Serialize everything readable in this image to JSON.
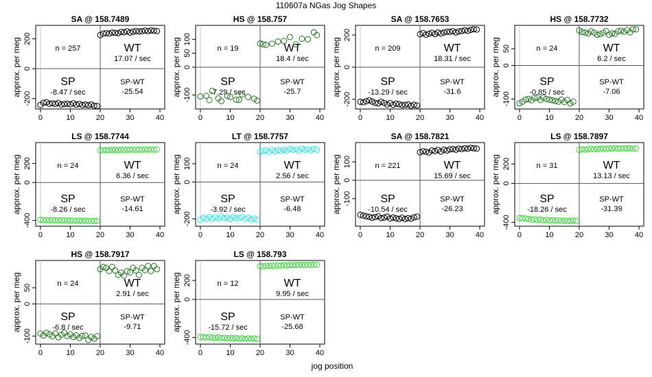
{
  "page": {
    "title": "110607a   NGas Jog Shapes",
    "xlabel": "jog position",
    "ylabel": "approx. per meg"
  },
  "colors": {
    "black": "#000000",
    "dark_green": "#1b7a1b",
    "bright_green": "#33dd33",
    "cyan": "#2ee6f0"
  },
  "chart_data": [
    {
      "type": "scatter",
      "title": "SA @ 158.7489",
      "color": "#000000",
      "ylim": [
        -270,
        290
      ],
      "yticks": [
        -200,
        0,
        200
      ],
      "xticks": [
        0,
        10,
        20,
        30,
        40
      ],
      "n_label": "n = 257",
      "wt_label": "WT",
      "wt_rate": "17.07 / sec",
      "sp_label": "SP",
      "sp_rate": "-8.47 / sec",
      "spwt_label": "SP-WT",
      "spwt_value": "-25.54",
      "sp_x": [
        0,
        1,
        2,
        3,
        4,
        5,
        6,
        7,
        8,
        9,
        10,
        11,
        12,
        13,
        14,
        15,
        16,
        17,
        18,
        19
      ],
      "sp_y": [
        -243,
        -228,
        -226,
        -235,
        -232,
        -236,
        -230,
        -240,
        -237,
        -235,
        -239,
        -232,
        -241,
        -236,
        -243,
        -240,
        -244,
        -240,
        -248,
        -250
      ],
      "wt_x": [
        20,
        21,
        22,
        23,
        24,
        25,
        26,
        27,
        28,
        29,
        30,
        31,
        32,
        33,
        34,
        35,
        36,
        37,
        38,
        39
      ],
      "wt_y": [
        225,
        235,
        238,
        235,
        242,
        240,
        238,
        246,
        244,
        250,
        242,
        248,
        252,
        249,
        251,
        255,
        252,
        256,
        254,
        252
      ]
    },
    {
      "type": "scatter",
      "title": "HS @ 158.757",
      "color": "#1b7a1b",
      "ylim": [
        -150,
        150
      ],
      "yticks": [
        -100,
        0,
        50,
        100
      ],
      "xticks": [
        0,
        10,
        20,
        30,
        40
      ],
      "n_label": "n = 19",
      "wt_label": "WT",
      "wt_rate": "18.4 / sec",
      "sp_label": "SP",
      "sp_rate": "-7.29 / sec",
      "spwt_label": "SP-WT",
      "spwt_value": "-25.7",
      "sp_x": [
        0,
        2,
        3,
        4,
        6,
        7,
        9,
        10,
        12,
        13,
        14,
        16,
        18,
        19
      ],
      "sp_y": [
        -105,
        -103,
        -118,
        -85,
        -112,
        -122,
        -103,
        -107,
        -117,
        -117,
        -98,
        -107,
        -113,
        -120
      ],
      "wt_x": [
        20,
        21,
        22,
        24,
        26,
        28,
        30,
        32,
        34,
        36,
        38,
        39
      ],
      "wt_y": [
        85,
        82,
        80,
        84,
        92,
        94,
        108,
        82,
        102,
        100,
        125,
        115
      ]
    },
    {
      "type": "scatter",
      "title": "SA @ 158.7653",
      "color": "#000000",
      "ylim": [
        -260,
        260
      ],
      "yticks": [
        -200,
        0,
        200
      ],
      "xticks": [
        0,
        10,
        20,
        30,
        40
      ],
      "n_label": "n = 209",
      "wt_label": "WT",
      "wt_rate": "18.31 / sec",
      "sp_label": "SP",
      "sp_rate": "-13.29 / sec",
      "spwt_label": "SP-WT",
      "spwt_value": "-31.6",
      "sp_x": [
        0,
        1,
        2,
        3,
        4,
        5,
        6,
        7,
        8,
        9,
        10,
        11,
        12,
        13,
        14,
        15,
        16,
        17,
        18,
        19
      ],
      "sp_y": [
        -215,
        -218,
        -212,
        -206,
        -214,
        -222,
        -225,
        -215,
        -222,
        -232,
        -224,
        -234,
        -227,
        -230,
        -236,
        -234,
        -232,
        -240,
        -234,
        -238
      ],
      "wt_x": [
        20,
        21,
        22,
        23,
        24,
        25,
        26,
        27,
        28,
        29,
        30,
        31,
        32,
        33,
        34,
        35,
        36,
        37,
        38,
        39
      ],
      "wt_y": [
        205,
        212,
        202,
        208,
        214,
        206,
        216,
        210,
        216,
        220,
        220,
        224,
        216,
        222,
        225,
        230,
        226,
        232,
        236,
        234
      ]
    },
    {
      "type": "scatter",
      "title": "HS @ 158.7732",
      "color": "#1b7a1b",
      "ylim": [
        -130,
        120
      ],
      "yticks": [
        -100,
        0,
        50
      ],
      "xticks": [
        0,
        10,
        20,
        30,
        40
      ],
      "n_label": "n = 24",
      "wt_label": "WT",
      "wt_rate": "6.2 / sec",
      "sp_label": "SP",
      "sp_rate": "-0.85 / sec",
      "spwt_label": "SP-WT",
      "spwt_value": "-7.06",
      "sp_x": [
        0,
        1,
        2,
        3,
        4,
        5,
        6,
        7,
        8,
        9,
        10,
        11,
        12,
        13,
        14,
        15,
        16,
        17,
        18
      ],
      "sp_y": [
        -113,
        -108,
        -102,
        -100,
        -104,
        -97,
        -96,
        -103,
        -96,
        -100,
        -102,
        -104,
        -106,
        -108,
        -102,
        -109,
        -103,
        -113,
        -108
      ],
      "wt_x": [
        20,
        21,
        22,
        23,
        24,
        25,
        26,
        27,
        28,
        29,
        30,
        31,
        32,
        33,
        34,
        35,
        36,
        37,
        38,
        39
      ],
      "wt_y": [
        105,
        100,
        98,
        96,
        102,
        98,
        92,
        94,
        98,
        103,
        92,
        96,
        95,
        102,
        104,
        101,
        106,
        99,
        108,
        108
      ]
    },
    {
      "type": "scatter",
      "title": "LS @ 158.7744",
      "color": "#33dd33",
      "ylim": [
        -460,
        420
      ],
      "yticks": [
        -400,
        0,
        200
      ],
      "xticks": [
        0,
        10,
        20,
        30,
        40
      ],
      "n_label": "n = 24",
      "wt_label": "WT",
      "wt_rate": "6.36 / sec",
      "sp_label": "SP",
      "sp_rate": "-8.26 / sec",
      "spwt_label": "SP-WT",
      "spwt_value": "-14.61",
      "sp_x": [
        0,
        1,
        2,
        3,
        4,
        5,
        6,
        7,
        8,
        9,
        10,
        11,
        12,
        13,
        14,
        15,
        16,
        17,
        18,
        19
      ],
      "sp_y": [
        -392,
        -396,
        -395,
        -398,
        -396,
        -399,
        -397,
        -400,
        -398,
        -402,
        -400,
        -401,
        -403,
        -400,
        -404,
        -402,
        -405,
        -404,
        -406,
        -405
      ],
      "wt_x": [
        20,
        21,
        22,
        23,
        24,
        25,
        26,
        27,
        28,
        29,
        30,
        31,
        32,
        33,
        34,
        35,
        36,
        37,
        38,
        39
      ],
      "wt_y": [
        338,
        340,
        342,
        340,
        343,
        344,
        342,
        345,
        344,
        346,
        345,
        347,
        344,
        346,
        345,
        348,
        346,
        347,
        345,
        348
      ]
    },
    {
      "type": "scatter",
      "title": "LT @ 158.7757",
      "color": "#2ee6f0",
      "ylim": [
        -240,
        215
      ],
      "yticks": [
        -200,
        0,
        100
      ],
      "xticks": [
        0,
        10,
        20,
        30,
        40
      ],
      "n_label": "n = 24",
      "wt_label": "WT",
      "wt_rate": "2.56 / sec",
      "sp_label": "SP",
      "sp_rate": "-3.92 / sec",
      "spwt_label": "SP-WT",
      "spwt_value": "-6.48",
      "sp_x": [
        0,
        1,
        2,
        3,
        4,
        5,
        6,
        7,
        8,
        9,
        10,
        11,
        12,
        13,
        14,
        15,
        16,
        17,
        18,
        19
      ],
      "sp_y": [
        -205,
        -195,
        -200,
        -190,
        -200,
        -192,
        -198,
        -188,
        -196,
        -193,
        -201,
        -189,
        -197,
        -195,
        -190,
        -200,
        -194,
        -203,
        -198,
        -205
      ],
      "wt_x": [
        20,
        21,
        22,
        23,
        24,
        25,
        26,
        27,
        28,
        29,
        30,
        31,
        32,
        33,
        34,
        35,
        36,
        37,
        38,
        39
      ],
      "wt_y": [
        165,
        170,
        172,
        165,
        175,
        168,
        174,
        170,
        176,
        172,
        180,
        175,
        178,
        170,
        182,
        176,
        178,
        172,
        180,
        176
      ]
    },
    {
      "type": "scatter",
      "title": "SA @ 158.7821",
      "color": "#000000",
      "ylim": [
        -250,
        205
      ],
      "yticks": [
        -100,
        0,
        100
      ],
      "xticks": [
        0,
        10,
        20,
        30,
        40
      ],
      "n_label": "n = 221",
      "wt_label": "WT",
      "wt_rate": "15.69 / sec",
      "sp_label": "SP",
      "sp_rate": "-10.54 / sec",
      "spwt_label": "SP-WT",
      "spwt_value": "-26.23",
      "sp_x": [
        0,
        1,
        2,
        3,
        4,
        5,
        6,
        7,
        8,
        9,
        10,
        11,
        12,
        13,
        14,
        15,
        16,
        17,
        18,
        19
      ],
      "sp_y": [
        -188,
        -192,
        -196,
        -199,
        -204,
        -200,
        -196,
        -206,
        -203,
        -198,
        -208,
        -203,
        -207,
        -210,
        -204,
        -211,
        -206,
        -209,
        -202,
        -198
      ],
      "wt_x": [
        20,
        21,
        22,
        23,
        24,
        25,
        26,
        27,
        28,
        29,
        30,
        31,
        32,
        33,
        34,
        35,
        36,
        37,
        38,
        39
      ],
      "wt_y": [
        152,
        158,
        155,
        151,
        162,
        159,
        165,
        156,
        166,
        162,
        168,
        170,
        166,
        172,
        170,
        174,
        172,
        176,
        174,
        172
      ]
    },
    {
      "type": "scatter",
      "title": "LS @ 158.7897",
      "color": "#33dd33",
      "ylim": [
        -440,
        420
      ],
      "yticks": [
        -400,
        0,
        200
      ],
      "xticks": [
        0,
        10,
        20,
        30,
        40
      ],
      "n_label": "n = 31",
      "wt_label": "WT",
      "wt_rate": "13.13 / sec",
      "sp_label": "SP",
      "sp_rate": "-18.26 / sec",
      "spwt_label": "SP-WT",
      "spwt_value": "-31.39",
      "sp_x": [
        0,
        1,
        2,
        3,
        4,
        5,
        6,
        7,
        8,
        9,
        10,
        11,
        12,
        13,
        14,
        15,
        16,
        17,
        18,
        19
      ],
      "sp_y": [
        -355,
        -358,
        -360,
        -365,
        -372,
        -368,
        -375,
        -372,
        -380,
        -376,
        -382,
        -378,
        -384,
        -380,
        -386,
        -382,
        -388,
        -385,
        -380,
        -386
      ],
      "wt_x": [
        20,
        21,
        22,
        23,
        24,
        25,
        26,
        27,
        28,
        29,
        30,
        31,
        32,
        33,
        34,
        35,
        36,
        37,
        38,
        39
      ],
      "wt_y": [
        345,
        350,
        348,
        352,
        355,
        350,
        356,
        354,
        358,
        356,
        360,
        358,
        362,
        357,
        360,
        362,
        358,
        361,
        356,
        360
      ]
    },
    {
      "type": "scatter",
      "title": "HS @ 158.7917",
      "color": "#1b7a1b",
      "ylim": [
        -125,
        135
      ],
      "yticks": [
        -100,
        0,
        50
      ],
      "xticks": [
        0,
        10,
        20,
        30,
        40
      ],
      "n_label": "n = 24",
      "wt_label": "WT",
      "wt_rate": "2.91 / sec",
      "sp_label": "SP",
      "sp_rate": "-6.8 / sec",
      "spwt_label": "SP-WT",
      "spwt_value": "-9.71",
      "sp_x": [
        0,
        1,
        2,
        3,
        4,
        5,
        6,
        7,
        8,
        9,
        10,
        11,
        12,
        13,
        14,
        15,
        16,
        17,
        18,
        19
      ],
      "sp_y": [
        -92,
        -98,
        -90,
        -95,
        -100,
        -92,
        -104,
        -96,
        -90,
        -100,
        -95,
        -103,
        -98,
        -106,
        -100,
        -98,
        -112,
        -103,
        -108,
        -100
      ],
      "wt_x": [
        20,
        21,
        22,
        23,
        24,
        25,
        26,
        27,
        28,
        29,
        30,
        31,
        32,
        33,
        34,
        35,
        36,
        37,
        38,
        39
      ],
      "wt_y": [
        108,
        115,
        112,
        102,
        115,
        104,
        90,
        97,
        88,
        102,
        98,
        112,
        104,
        90,
        112,
        105,
        118,
        102,
        118,
        108
      ]
    },
    {
      "type": "scatter",
      "title": "LS @ 158.793",
      "color": "#33dd33",
      "ylim": [
        -470,
        410
      ],
      "yticks": [
        -400,
        0,
        200
      ],
      "xticks": [
        0,
        10,
        20,
        30,
        40
      ],
      "n_label": "n = 12",
      "wt_label": "WT",
      "wt_rate": "9.95 / sec",
      "sp_label": "SP",
      "sp_rate": "-15.72 / sec",
      "spwt_label": "SP-WT",
      "spwt_value": "-25.68",
      "sp_x": [
        0,
        1,
        2,
        3,
        4,
        5,
        6,
        7,
        8,
        9,
        10,
        11,
        12,
        13,
        14,
        15,
        16,
        17,
        18,
        19
      ],
      "sp_y": [
        -395,
        -398,
        -400,
        -396,
        -402,
        -404,
        -400,
        -406,
        -403,
        -408,
        -405,
        -410,
        -407,
        -412,
        -409,
        -415,
        -410,
        -413,
        -411,
        -416
      ],
      "wt_x": [
        20,
        21,
        22,
        23,
        24,
        25,
        26,
        27,
        28,
        29,
        30,
        31,
        32,
        33,
        34,
        35,
        36,
        37,
        38,
        39
      ],
      "wt_y": [
        350,
        348,
        355,
        352,
        356,
        354,
        358,
        356,
        360,
        358,
        362,
        360,
        363,
        361,
        365,
        362,
        366,
        363,
        364,
        366
      ]
    }
  ]
}
